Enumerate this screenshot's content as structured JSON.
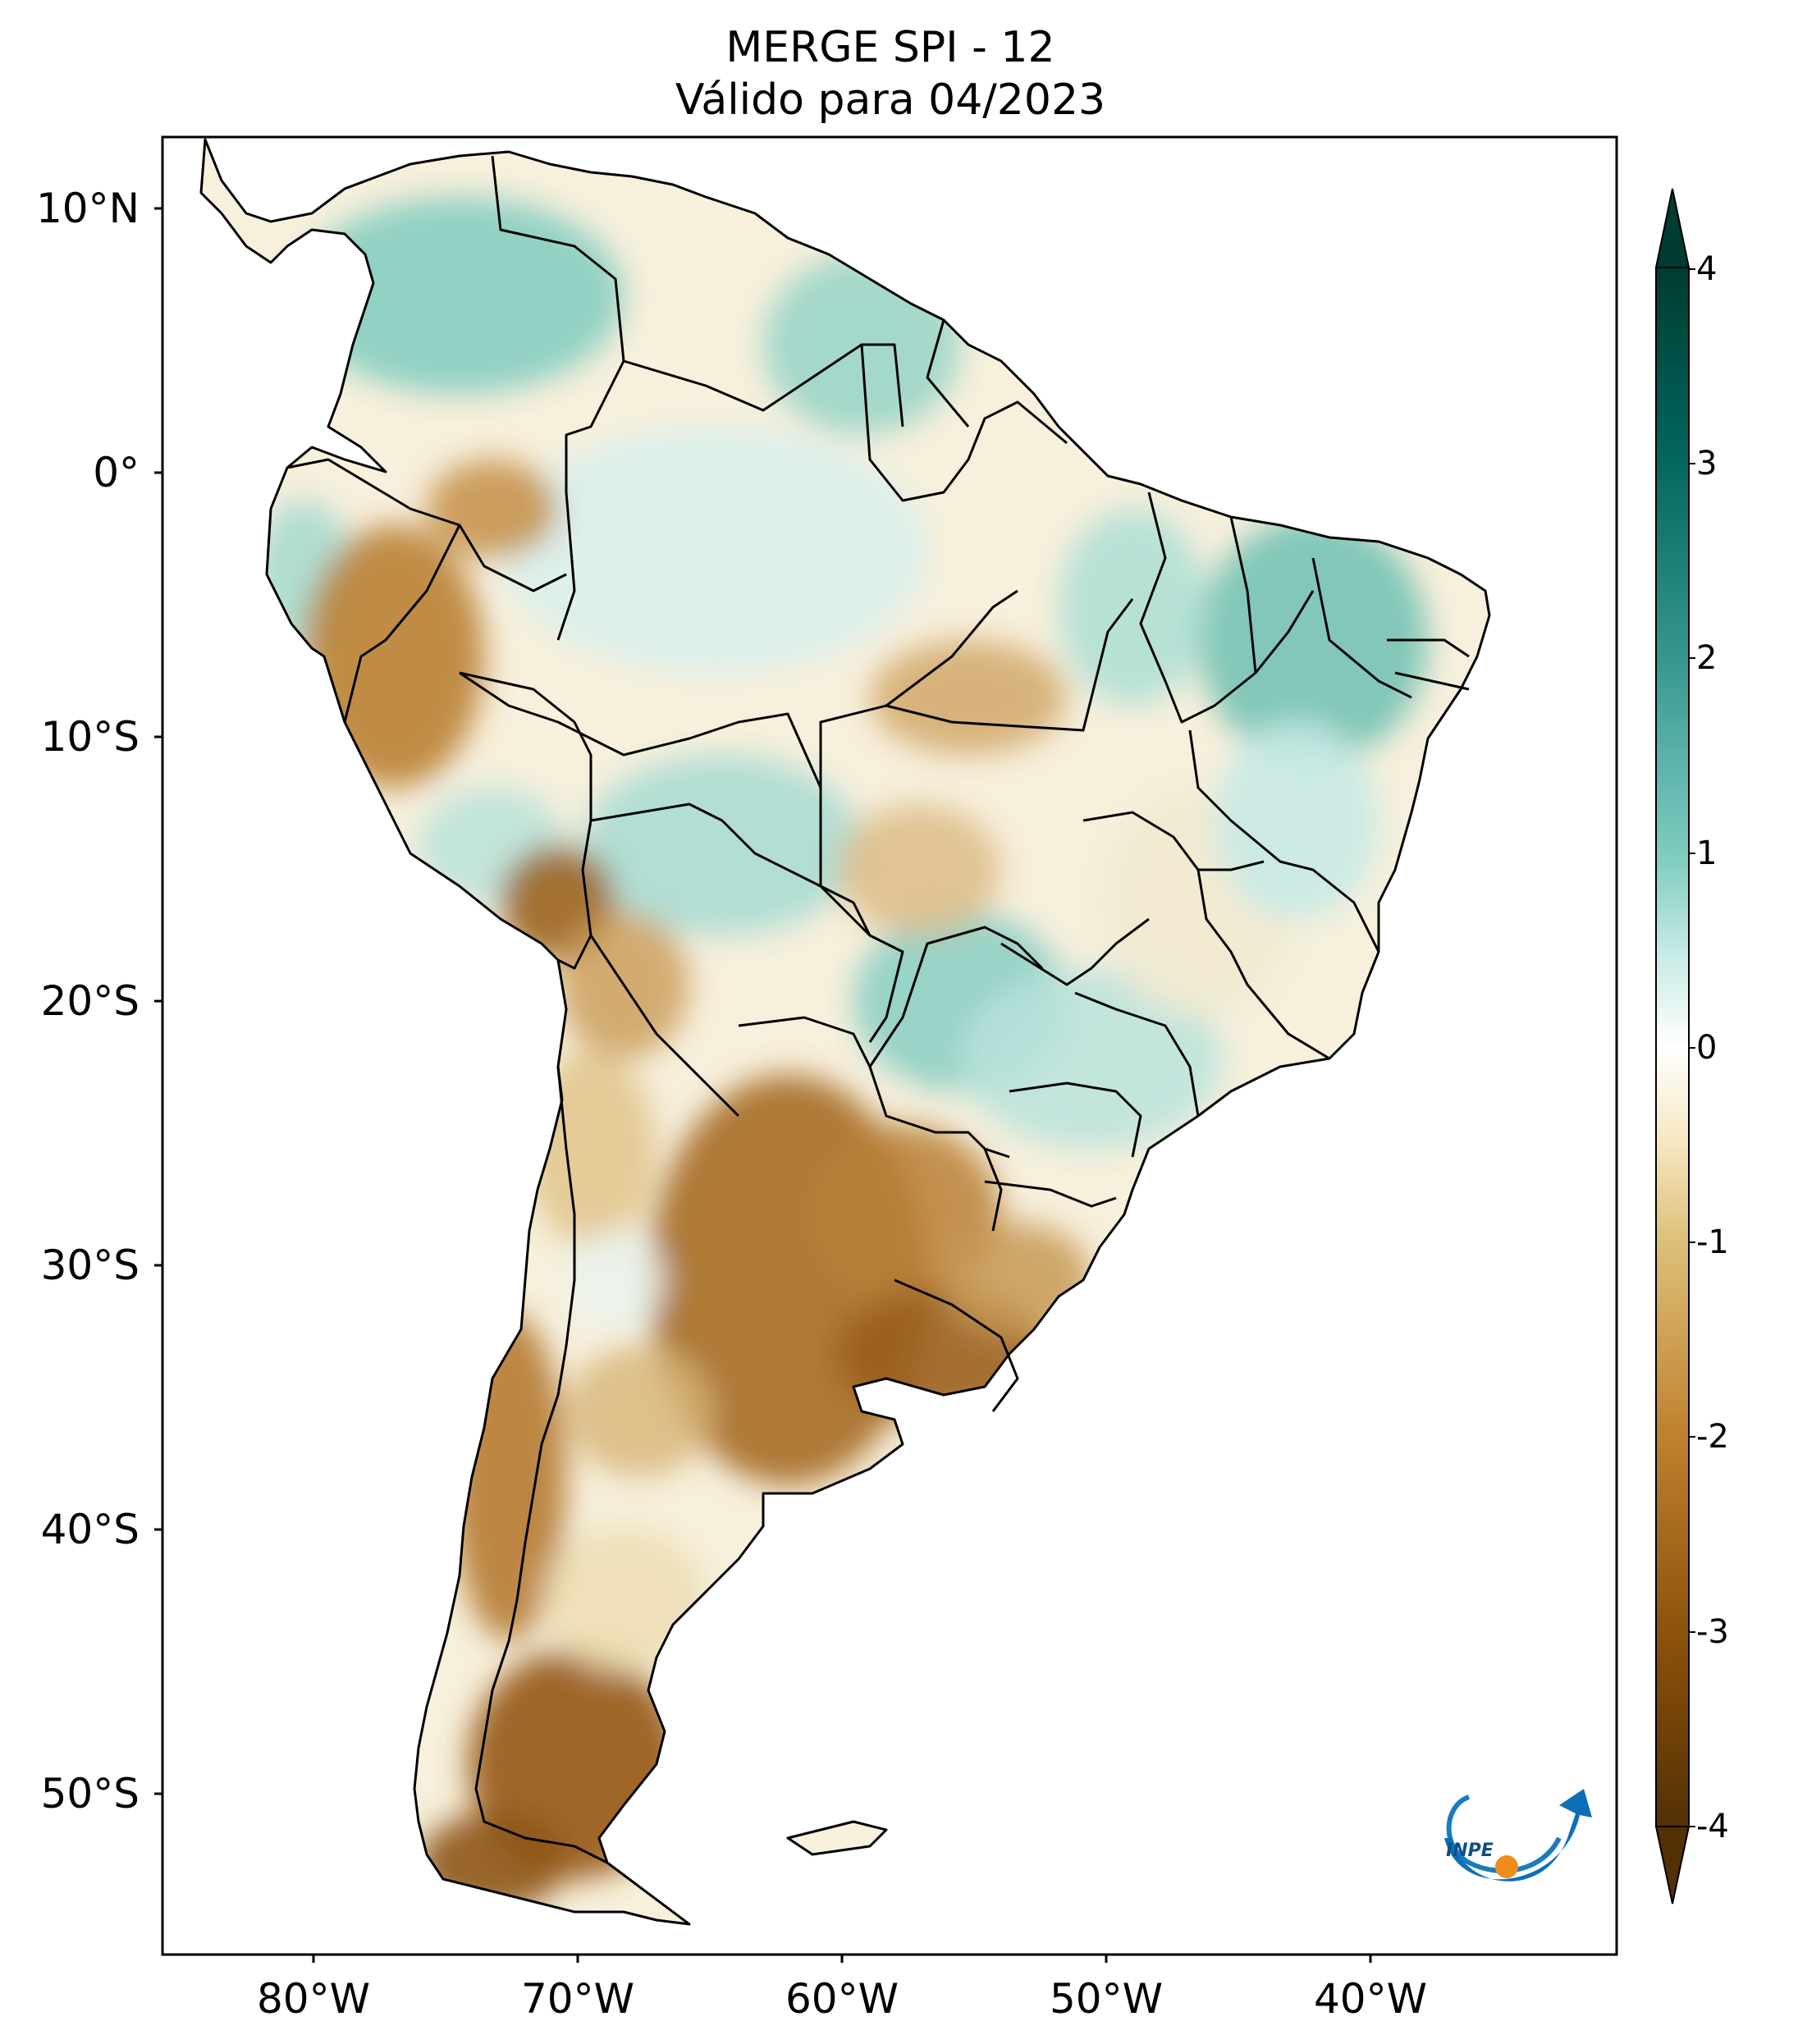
{
  "title": {
    "line1": "MERGE   SPI - 12",
    "line2": "Válido para 04/2023"
  },
  "map": {
    "lat_ticks": [
      "10°N",
      "0°",
      "10°S",
      "20°S",
      "30°S",
      "40°S",
      "50°S"
    ],
    "lon_ticks": [
      "80°W",
      "70°W",
      "60°W",
      "50°W",
      "40°W"
    ]
  },
  "colorbar": {
    "labels": [
      "4",
      "3",
      "2",
      "1",
      "0",
      "-1",
      "-2",
      "-3",
      "-4"
    ],
    "range": [
      -4,
      4
    ],
    "colors": {
      "max": "#003c30",
      "high": "#35978f",
      "mid_high": "#c7eae5",
      "zero": "#ffffff",
      "mid_low": "#f6e8c3",
      "low": "#bf812d",
      "min": "#543005"
    }
  },
  "logo": {
    "text": "INPE"
  }
}
